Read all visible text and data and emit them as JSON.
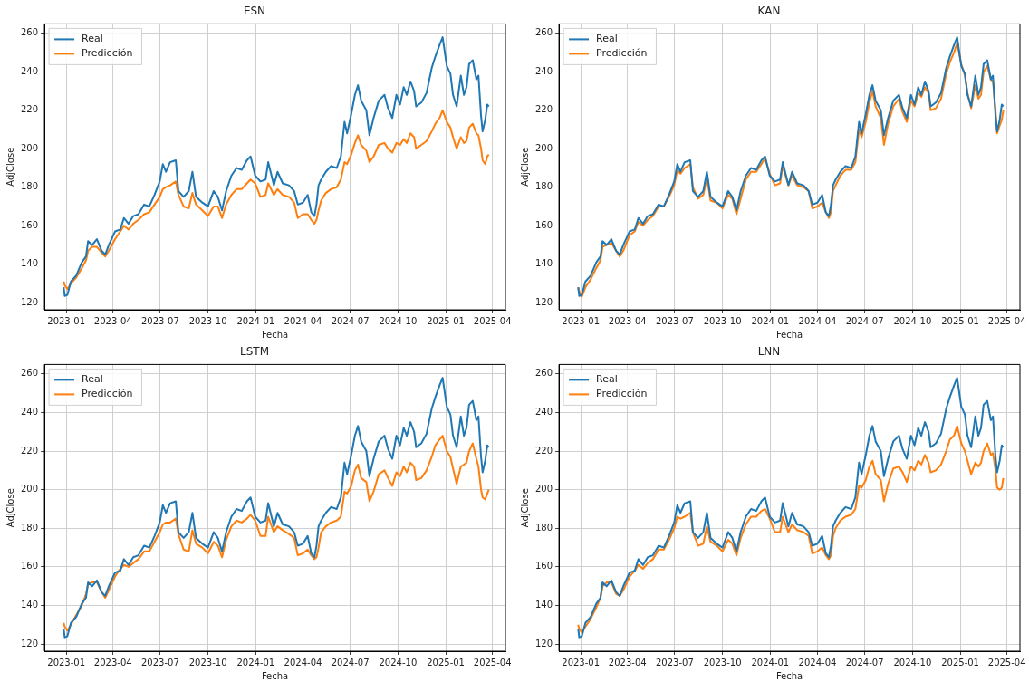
{
  "chart_data": [
    {
      "type": "line",
      "title": "ESN",
      "xlabel": "Fecha",
      "ylabel": "AdjClose",
      "grid": true,
      "legend": "top left",
      "line_style": "solid",
      "marker": "none",
      "x": [
        "2022-12-27",
        "2022-12-29",
        "2023-01-03",
        "2023-01-10",
        "2023-01-20",
        "2023-01-31",
        "2023-02-08",
        "2023-02-12",
        "2023-02-20",
        "2023-03-01",
        "2023-03-10",
        "2023-03-17",
        "2023-03-24",
        "2023-04-05",
        "2023-04-15",
        "2023-04-22",
        "2023-05-01",
        "2023-05-10",
        "2023-05-20",
        "2023-05-31",
        "2023-06-10",
        "2023-06-20",
        "2023-06-30",
        "2023-07-06",
        "2023-07-12",
        "2023-07-20",
        "2023-07-31",
        "2023-08-05",
        "2023-08-15",
        "2023-08-25",
        "2023-09-01",
        "2023-09-08",
        "2023-09-20",
        "2023-10-01",
        "2023-10-12",
        "2023-10-20",
        "2023-10-28",
        "2023-11-05",
        "2023-11-15",
        "2023-11-25",
        "2023-12-05",
        "2023-12-15",
        "2023-12-22",
        "2023-12-31",
        "2024-01-10",
        "2024-01-20",
        "2024-01-25",
        "2024-02-05",
        "2024-02-12",
        "2024-02-22",
        "2024-03-05",
        "2024-03-15",
        "2024-03-22",
        "2024-04-01",
        "2024-04-10",
        "2024-04-17",
        "2024-04-23",
        "2024-04-27",
        "2024-05-01",
        "2024-05-06",
        "2024-05-15",
        "2024-05-25",
        "2024-06-05",
        "2024-06-13",
        "2024-06-20",
        "2024-06-25",
        "2024-07-03",
        "2024-07-10",
        "2024-07-16",
        "2024-07-22",
        "2024-08-01",
        "2024-08-07",
        "2024-08-15",
        "2024-08-25",
        "2024-09-05",
        "2024-09-12",
        "2024-09-20",
        "2024-09-28",
        "2024-10-05",
        "2024-10-12",
        "2024-10-18",
        "2024-10-25",
        "2024-11-01",
        "2024-11-05",
        "2024-11-15",
        "2024-11-25",
        "2024-12-05",
        "2024-12-12",
        "2024-12-20",
        "2024-12-26",
        "2025-01-03",
        "2025-01-10",
        "2025-01-15",
        "2025-01-22",
        "2025-01-30",
        "2025-02-05",
        "2025-02-10",
        "2025-02-15",
        "2025-02-22",
        "2025-03-01",
        "2025-03-05",
        "2025-03-10",
        "2025-03-13",
        "2025-03-18",
        "2025-03-22",
        "2025-03-25"
      ],
      "xlim": [
        "2022-11-20",
        "2025-04-26"
      ],
      "xticks": [
        "2023-01",
        "2023-04",
        "2023-07",
        "2023-10",
        "2024-01",
        "2024-04",
        "2024-07",
        "2024-10",
        "2025-01",
        "2025-04"
      ],
      "ylim": [
        116.3,
        264.9
      ],
      "yticks": [
        120,
        140,
        160,
        180,
        200,
        220,
        240,
        260
      ],
      "series": [
        {
          "name": "Real",
          "color": "#1f77b4",
          "values": [
            128,
            123.5,
            124,
            131,
            134,
            141,
            144,
            152,
            150,
            153,
            147,
            145,
            150,
            157,
            158,
            164,
            161,
            165,
            166,
            171,
            170,
            176,
            183,
            192,
            188,
            193,
            194,
            178,
            175,
            178,
            188,
            175,
            172,
            170,
            178,
            175,
            168,
            178,
            186,
            190,
            189,
            194,
            196,
            186,
            183,
            184,
            193,
            181,
            188,
            182,
            181,
            178,
            171,
            172,
            176,
            167,
            165,
            171,
            181,
            184,
            188,
            191,
            190,
            196,
            214,
            208,
            218,
            228,
            233,
            225,
            220,
            207,
            216,
            225,
            228,
            221,
            216,
            228,
            223,
            232,
            228,
            235,
            230,
            222,
            224,
            229,
            242,
            248,
            254,
            258,
            243,
            239,
            228,
            222,
            238,
            228,
            232,
            244,
            246,
            236,
            238,
            217,
            209,
            215,
            223,
            222
          ]
        },
        {
          "name": "Predicción",
          "color": "#ff7f0e",
          "values": [
            131,
            129,
            127,
            130,
            133,
            138,
            142,
            147,
            149,
            149,
            146,
            144,
            147,
            153,
            157,
            160,
            158,
            161,
            163,
            166,
            167,
            171,
            175,
            179,
            180,
            181,
            183,
            176,
            170,
            169,
            177,
            171,
            168,
            165,
            170,
            170,
            164,
            171,
            176,
            179,
            179,
            182,
            184,
            182,
            175,
            176,
            182,
            176,
            179,
            176,
            175,
            172,
            164,
            166,
            166,
            163,
            161,
            163,
            168,
            173,
            177,
            179,
            180,
            184,
            193,
            192,
            197,
            203,
            207,
            202,
            199,
            193,
            196,
            202,
            203,
            200,
            198,
            203,
            202,
            205,
            203,
            208,
            206,
            200,
            202,
            204,
            209,
            213,
            216,
            220,
            214,
            211,
            206,
            200,
            206,
            203,
            204,
            211,
            213,
            208,
            207,
            200,
            194,
            192,
            196,
            197
          ]
        }
      ]
    },
    {
      "type": "line",
      "title": "KAN",
      "xlabel": "Fecha",
      "ylabel": "AdjClose",
      "grid": true,
      "legend": "top left",
      "line_style": "solid",
      "marker": "none",
      "x": [
        "2022-12-27",
        "2022-12-29",
        "2023-01-03",
        "2023-01-10",
        "2023-01-20",
        "2023-01-31",
        "2023-02-08",
        "2023-02-12",
        "2023-02-20",
        "2023-03-01",
        "2023-03-10",
        "2023-03-17",
        "2023-03-24",
        "2023-04-05",
        "2023-04-15",
        "2023-04-22",
        "2023-05-01",
        "2023-05-10",
        "2023-05-20",
        "2023-05-31",
        "2023-06-10",
        "2023-06-20",
        "2023-06-30",
        "2023-07-06",
        "2023-07-12",
        "2023-07-20",
        "2023-07-31",
        "2023-08-05",
        "2023-08-15",
        "2023-08-25",
        "2023-09-01",
        "2023-09-08",
        "2023-09-20",
        "2023-10-01",
        "2023-10-12",
        "2023-10-20",
        "2023-10-28",
        "2023-11-05",
        "2023-11-15",
        "2023-11-25",
        "2023-12-05",
        "2023-12-15",
        "2023-12-22",
        "2023-12-31",
        "2024-01-10",
        "2024-01-20",
        "2024-01-25",
        "2024-02-05",
        "2024-02-12",
        "2024-02-22",
        "2024-03-05",
        "2024-03-15",
        "2024-03-22",
        "2024-04-01",
        "2024-04-10",
        "2024-04-17",
        "2024-04-23",
        "2024-04-27",
        "2024-05-01",
        "2024-05-06",
        "2024-05-15",
        "2024-05-25",
        "2024-06-05",
        "2024-06-13",
        "2024-06-20",
        "2024-06-25",
        "2024-07-03",
        "2024-07-10",
        "2024-07-16",
        "2024-07-22",
        "2024-08-01",
        "2024-08-07",
        "2024-08-15",
        "2024-08-25",
        "2024-09-05",
        "2024-09-12",
        "2024-09-20",
        "2024-09-28",
        "2024-10-05",
        "2024-10-12",
        "2024-10-18",
        "2024-10-25",
        "2024-11-01",
        "2024-11-05",
        "2024-11-15",
        "2024-11-25",
        "2024-12-05",
        "2024-12-12",
        "2024-12-20",
        "2024-12-26",
        "2025-01-03",
        "2025-01-10",
        "2025-01-15",
        "2025-01-22",
        "2025-01-30",
        "2025-02-05",
        "2025-02-10",
        "2025-02-15",
        "2025-02-22",
        "2025-03-01",
        "2025-03-05",
        "2025-03-10",
        "2025-03-13",
        "2025-03-18",
        "2025-03-22",
        "2025-03-25"
      ],
      "xlim": [
        "2022-11-20",
        "2025-04-26"
      ],
      "xticks": [
        "2023-01",
        "2023-04",
        "2023-07",
        "2023-10",
        "2024-01",
        "2024-04",
        "2024-07",
        "2024-10",
        "2025-01",
        "2025-04"
      ],
      "ylim": [
        116.3,
        264.9
      ],
      "yticks": [
        120,
        140,
        160,
        180,
        200,
        220,
        240,
        260
      ],
      "series": [
        {
          "name": "Real",
          "color": "#1f77b4",
          "values": [
            128,
            123.5,
            124,
            131,
            134,
            141,
            144,
            152,
            150,
            153,
            147,
            145,
            150,
            157,
            158,
            164,
            161,
            165,
            166,
            171,
            170,
            176,
            183,
            192,
            188,
            193,
            194,
            178,
            175,
            178,
            188,
            175,
            172,
            170,
            178,
            175,
            168,
            178,
            186,
            190,
            189,
            194,
            196,
            186,
            183,
            184,
            193,
            181,
            188,
            182,
            181,
            178,
            171,
            172,
            176,
            167,
            165,
            171,
            181,
            184,
            188,
            191,
            190,
            196,
            214,
            208,
            218,
            228,
            233,
            225,
            220,
            207,
            216,
            225,
            228,
            221,
            216,
            228,
            223,
            232,
            228,
            235,
            230,
            222,
            224,
            229,
            242,
            248,
            254,
            258,
            243,
            239,
            228,
            222,
            238,
            228,
            232,
            244,
            246,
            236,
            238,
            217,
            209,
            215,
            223,
            222
          ]
        },
        {
          "name": "Predicción",
          "color": "#ff7f0e",
          "values": [
            128,
            126,
            123,
            128,
            132,
            138,
            142,
            149,
            150,
            151,
            147,
            144,
            147,
            155,
            157,
            162,
            160,
            163,
            165,
            170,
            170,
            175,
            181,
            189,
            187,
            190,
            192,
            180,
            174,
            176,
            185,
            173,
            172,
            169,
            176,
            174,
            166,
            174,
            184,
            188,
            188,
            192,
            195,
            187,
            181,
            182,
            191,
            181,
            186,
            181,
            180,
            178,
            169,
            170,
            172,
            167,
            164,
            167,
            178,
            181,
            186,
            189,
            189,
            193,
            210,
            206,
            214,
            224,
            230,
            222,
            216,
            202,
            213,
            222,
            226,
            219,
            214,
            225,
            222,
            229,
            227,
            232,
            229,
            220,
            221,
            226,
            239,
            245,
            250,
            255,
            244,
            238,
            229,
            221,
            233,
            226,
            228,
            240,
            243,
            236,
            235,
            220,
            208,
            212,
            215,
            220
          ]
        }
      ]
    },
    {
      "type": "line",
      "title": "LSTM",
      "xlabel": "Fecha",
      "ylabel": "AdjClose",
      "grid": true,
      "legend": "top left",
      "line_style": "solid",
      "marker": "none",
      "x": [
        "2022-12-27",
        "2022-12-29",
        "2023-01-03",
        "2023-01-10",
        "2023-01-20",
        "2023-01-31",
        "2023-02-08",
        "2023-02-12",
        "2023-02-20",
        "2023-03-01",
        "2023-03-10",
        "2023-03-17",
        "2023-03-24",
        "2023-04-05",
        "2023-04-15",
        "2023-04-22",
        "2023-05-01",
        "2023-05-10",
        "2023-05-20",
        "2023-05-31",
        "2023-06-10",
        "2023-06-20",
        "2023-06-30",
        "2023-07-06",
        "2023-07-12",
        "2023-07-20",
        "2023-07-31",
        "2023-08-05",
        "2023-08-15",
        "2023-08-25",
        "2023-09-01",
        "2023-09-08",
        "2023-09-20",
        "2023-10-01",
        "2023-10-12",
        "2023-10-20",
        "2023-10-28",
        "2023-11-05",
        "2023-11-15",
        "2023-11-25",
        "2023-12-05",
        "2023-12-15",
        "2023-12-22",
        "2023-12-31",
        "2024-01-10",
        "2024-01-20",
        "2024-01-25",
        "2024-02-05",
        "2024-02-12",
        "2024-02-22",
        "2024-03-05",
        "2024-03-15",
        "2024-03-22",
        "2024-04-01",
        "2024-04-10",
        "2024-04-17",
        "2024-04-23",
        "2024-04-27",
        "2024-05-01",
        "2024-05-06",
        "2024-05-15",
        "2024-05-25",
        "2024-06-05",
        "2024-06-13",
        "2024-06-20",
        "2024-06-25",
        "2024-07-03",
        "2024-07-10",
        "2024-07-16",
        "2024-07-22",
        "2024-08-01",
        "2024-08-07",
        "2024-08-15",
        "2024-08-25",
        "2024-09-05",
        "2024-09-12",
        "2024-09-20",
        "2024-09-28",
        "2024-10-05",
        "2024-10-12",
        "2024-10-18",
        "2024-10-25",
        "2024-11-01",
        "2024-11-05",
        "2024-11-15",
        "2024-11-25",
        "2024-12-05",
        "2024-12-12",
        "2024-12-20",
        "2024-12-26",
        "2025-01-03",
        "2025-01-10",
        "2025-01-15",
        "2025-01-22",
        "2025-01-30",
        "2025-02-05",
        "2025-02-10",
        "2025-02-15",
        "2025-02-22",
        "2025-03-01",
        "2025-03-05",
        "2025-03-10",
        "2025-03-13",
        "2025-03-18",
        "2025-03-22",
        "2025-03-25"
      ],
      "xlim": [
        "2022-11-20",
        "2025-04-26"
      ],
      "xticks": [
        "2023-01",
        "2023-04",
        "2023-07",
        "2023-10",
        "2024-01",
        "2024-04",
        "2024-07",
        "2024-10",
        "2025-01",
        "2025-04"
      ],
      "ylim": [
        116.3,
        264.9
      ],
      "yticks": [
        120,
        140,
        160,
        180,
        200,
        220,
        240,
        260
      ],
      "series": [
        {
          "name": "Real",
          "color": "#1f77b4",
          "values": [
            128,
            123.5,
            124,
            131,
            134,
            141,
            144,
            152,
            150,
            153,
            147,
            145,
            150,
            157,
            158,
            164,
            161,
            165,
            166,
            171,
            170,
            176,
            183,
            192,
            188,
            193,
            194,
            178,
            175,
            178,
            188,
            175,
            172,
            170,
            178,
            175,
            168,
            178,
            186,
            190,
            189,
            194,
            196,
            186,
            183,
            184,
            193,
            181,
            188,
            182,
            181,
            178,
            171,
            172,
            176,
            167,
            165,
            171,
            181,
            184,
            188,
            191,
            190,
            196,
            214,
            208,
            218,
            228,
            233,
            225,
            220,
            207,
            216,
            225,
            228,
            221,
            216,
            228,
            223,
            232,
            228,
            235,
            230,
            222,
            224,
            229,
            242,
            248,
            254,
            258,
            243,
            239,
            228,
            222,
            238,
            228,
            232,
            244,
            246,
            236,
            238,
            217,
            209,
            215,
            223,
            222
          ]
        },
        {
          "name": "Predicción",
          "color": "#ff7f0e",
          "values": [
            131,
            129,
            127,
            130,
            135,
            140,
            146,
            151,
            152,
            152,
            147,
            144,
            148,
            155,
            159,
            161,
            160,
            162,
            164,
            168,
            168,
            173,
            178,
            182,
            183,
            183,
            185,
            177,
            169,
            168,
            179,
            172,
            170,
            167,
            173,
            171,
            165,
            174,
            181,
            184,
            183,
            185,
            187,
            184,
            176,
            176,
            186,
            178,
            181,
            179,
            177,
            175,
            166,
            167,
            169,
            166,
            164,
            165,
            170,
            178,
            181,
            183,
            184,
            186,
            199,
            198,
            202,
            210,
            213,
            206,
            204,
            194,
            199,
            208,
            210,
            206,
            202,
            209,
            207,
            212,
            209,
            214,
            212,
            205,
            206,
            210,
            217,
            223,
            226,
            228,
            220,
            217,
            211,
            203,
            212,
            213,
            214,
            220,
            224,
            216,
            212,
            200,
            196,
            195,
            198,
            200
          ]
        }
      ]
    },
    {
      "type": "line",
      "title": "LNN",
      "xlabel": "Fecha",
      "ylabel": "AdjClose",
      "grid": true,
      "legend": "top left",
      "line_style": "solid",
      "marker": "none",
      "x": [
        "2022-12-27",
        "2022-12-29",
        "2023-01-03",
        "2023-01-10",
        "2023-01-20",
        "2023-01-31",
        "2023-02-08",
        "2023-02-12",
        "2023-02-20",
        "2023-03-01",
        "2023-03-10",
        "2023-03-17",
        "2023-03-24",
        "2023-04-05",
        "2023-04-15",
        "2023-04-22",
        "2023-05-01",
        "2023-05-10",
        "2023-05-20",
        "2023-05-31",
        "2023-06-10",
        "2023-06-20",
        "2023-06-30",
        "2023-07-06",
        "2023-07-12",
        "2023-07-20",
        "2023-07-31",
        "2023-08-05",
        "2023-08-15",
        "2023-08-25",
        "2023-09-01",
        "2023-09-08",
        "2023-09-20",
        "2023-10-01",
        "2023-10-12",
        "2023-10-20",
        "2023-10-28",
        "2023-11-05",
        "2023-11-15",
        "2023-11-25",
        "2023-12-05",
        "2023-12-15",
        "2023-12-22",
        "2023-12-31",
        "2024-01-10",
        "2024-01-20",
        "2024-01-25",
        "2024-02-05",
        "2024-02-12",
        "2024-02-22",
        "2024-03-05",
        "2024-03-15",
        "2024-03-22",
        "2024-04-01",
        "2024-04-10",
        "2024-04-17",
        "2024-04-23",
        "2024-04-27",
        "2024-05-01",
        "2024-05-06",
        "2024-05-15",
        "2024-05-25",
        "2024-06-05",
        "2024-06-13",
        "2024-06-20",
        "2024-06-25",
        "2024-07-03",
        "2024-07-10",
        "2024-07-16",
        "2024-07-22",
        "2024-08-01",
        "2024-08-07",
        "2024-08-15",
        "2024-08-25",
        "2024-09-05",
        "2024-09-12",
        "2024-09-20",
        "2024-09-28",
        "2024-10-05",
        "2024-10-12",
        "2024-10-18",
        "2024-10-25",
        "2024-11-01",
        "2024-11-05",
        "2024-11-15",
        "2024-11-25",
        "2024-12-05",
        "2024-12-12",
        "2024-12-20",
        "2024-12-26",
        "2025-01-03",
        "2025-01-10",
        "2025-01-15",
        "2025-01-22",
        "2025-01-30",
        "2025-02-05",
        "2025-02-10",
        "2025-02-15",
        "2025-02-22",
        "2025-03-01",
        "2025-03-05",
        "2025-03-10",
        "2025-03-13",
        "2025-03-18",
        "2025-03-22",
        "2025-03-25"
      ],
      "xlim": [
        "2022-11-20",
        "2025-04-26"
      ],
      "xticks": [
        "2023-01",
        "2023-04",
        "2023-07",
        "2023-10",
        "2024-01",
        "2024-04",
        "2024-07",
        "2024-10",
        "2025-01",
        "2025-04"
      ],
      "ylim": [
        116.3,
        264.9
      ],
      "yticks": [
        120,
        140,
        160,
        180,
        200,
        220,
        240,
        260
      ],
      "series": [
        {
          "name": "Real",
          "color": "#1f77b4",
          "values": [
            128,
            123.5,
            124,
            131,
            134,
            141,
            144,
            152,
            150,
            153,
            147,
            145,
            150,
            157,
            158,
            164,
            161,
            165,
            166,
            171,
            170,
            176,
            183,
            192,
            188,
            193,
            194,
            178,
            175,
            178,
            188,
            175,
            172,
            170,
            178,
            175,
            168,
            178,
            186,
            190,
            189,
            194,
            196,
            186,
            183,
            184,
            193,
            181,
            188,
            182,
            181,
            178,
            171,
            172,
            176,
            167,
            165,
            171,
            181,
            184,
            188,
            191,
            190,
            196,
            214,
            208,
            218,
            228,
            233,
            225,
            220,
            207,
            216,
            225,
            228,
            221,
            216,
            228,
            223,
            232,
            228,
            235,
            230,
            222,
            224,
            229,
            242,
            248,
            254,
            258,
            243,
            239,
            228,
            222,
            238,
            228,
            232,
            244,
            246,
            236,
            238,
            217,
            209,
            215,
            223,
            222
          ]
        },
        {
          "name": "Predicción",
          "color": "#ff7f0e",
          "values": [
            130,
            128,
            126,
            129,
            133,
            139,
            144,
            150,
            152,
            152,
            146,
            145,
            148,
            155,
            158,
            161,
            159,
            162,
            164,
            169,
            169,
            174,
            180,
            186,
            185,
            186,
            188,
            178,
            171,
            172,
            181,
            173,
            171,
            168,
            174,
            172,
            166,
            175,
            182,
            186,
            186,
            189,
            190,
            185,
            178,
            178,
            186,
            178,
            182,
            179,
            178,
            176,
            167,
            168,
            170,
            166,
            164,
            166,
            176,
            180,
            184,
            186,
            187,
            190,
            202,
            201,
            205,
            212,
            215,
            208,
            205,
            194,
            203,
            211,
            212,
            209,
            204,
            212,
            210,
            215,
            213,
            218,
            214,
            209,
            210,
            213,
            220,
            226,
            228,
            233,
            224,
            220,
            215,
            208,
            214,
            212,
            214,
            220,
            224,
            218,
            219,
            210,
            201,
            200,
            201,
            206
          ]
        }
      ]
    }
  ]
}
